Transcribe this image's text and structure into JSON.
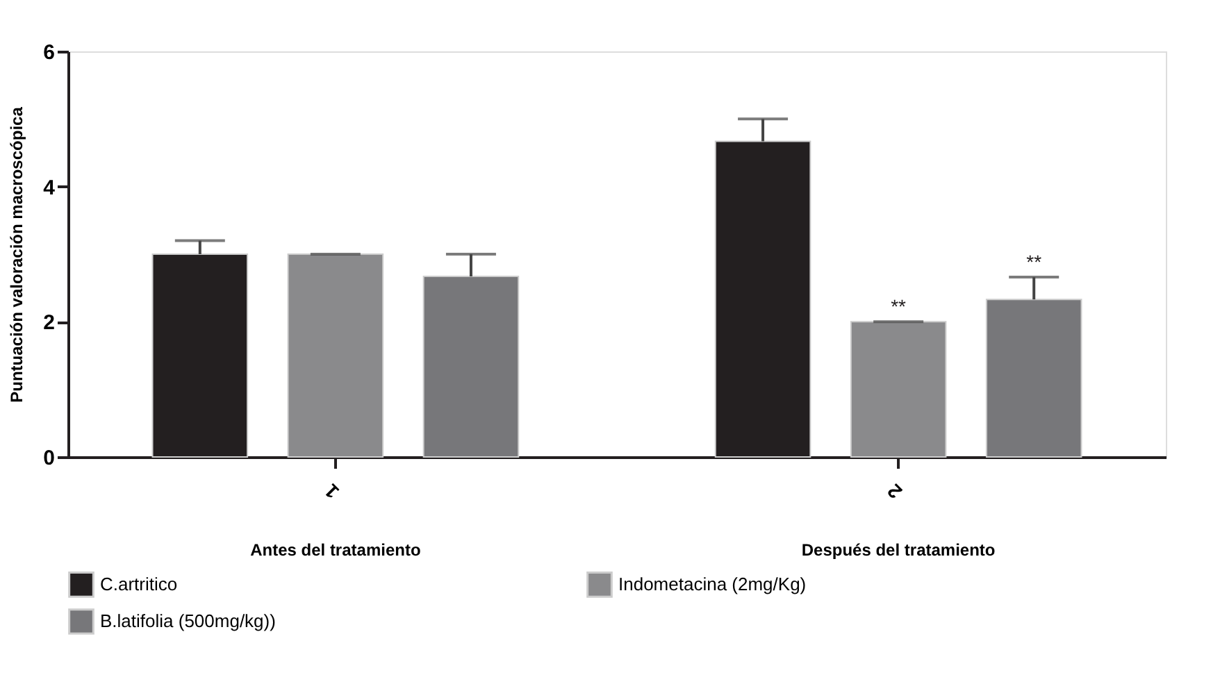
{
  "chart_data": {
    "type": "bar",
    "ylabel": "Puntuación valoración macroscópica",
    "categories": [
      "1",
      "2"
    ],
    "series": [
      {
        "name": "C.artritico",
        "color": "#231f20",
        "values": [
          3.0,
          4.67
        ],
        "errors": [
          0.2,
          0.33
        ]
      },
      {
        "name": "Indometacina (2mg/Kg)",
        "color": "#8a8a8c",
        "values": [
          3.0,
          2.0
        ],
        "errors": [
          0,
          0
        ],
        "value_labels": [
          null,
          "**"
        ]
      },
      {
        "name": "B.latifolia (500mg/kg))",
        "color": "#77777a",
        "values": [
          2.67,
          2.33
        ],
        "errors": [
          0.33,
          0.33
        ],
        "value_labels": [
          null,
          "**"
        ]
      }
    ],
    "ylim": [
      0,
      6
    ],
    "yticks": [
      0,
      2,
      4,
      6
    ],
    "grid": false,
    "legend": "bottom",
    "annotations": [
      "Antes del tratamiento",
      "Después del tratamiento"
    ]
  }
}
